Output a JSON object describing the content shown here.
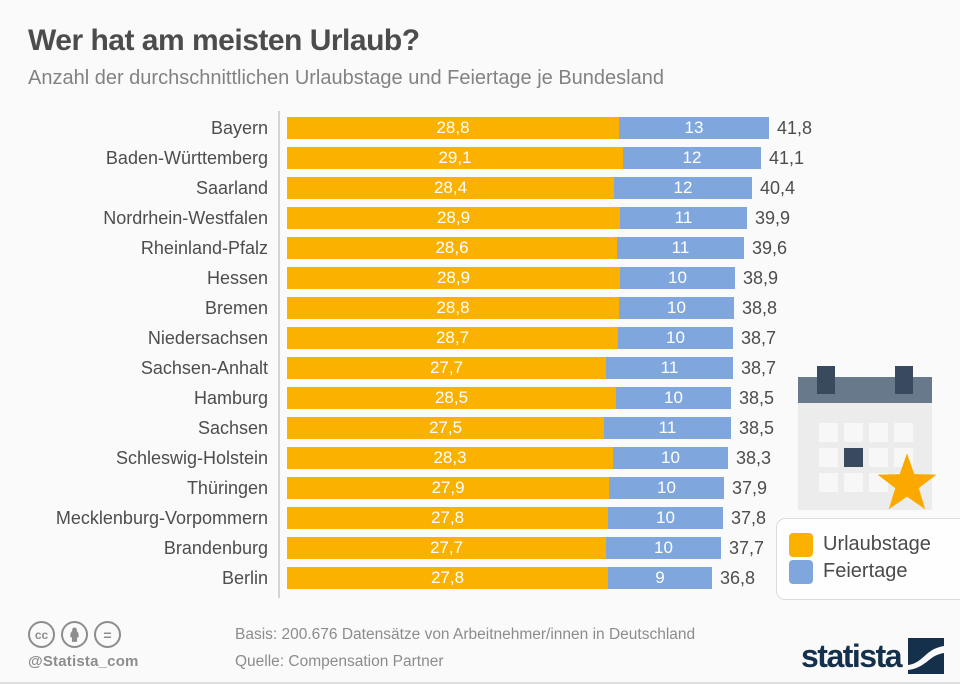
{
  "header": {
    "title": "Wer hat am meisten Urlaub?",
    "subtitle": "Anzahl der durchschnittlichen Urlaubstage und Feiertage je Bundesland"
  },
  "chart_data": {
    "type": "bar",
    "orientation": "horizontal",
    "stacked": true,
    "title": "Wer hat am meisten Urlaub?",
    "subtitle": "Anzahl der durchschnittlichen Urlaubstage und Feiertage je Bundesland",
    "categories": [
      "Bayern",
      "Baden-Württemberg",
      "Saarland",
      "Nordrhein-Westfalen",
      "Rheinland-Pfalz",
      "Hessen",
      "Bremen",
      "Niedersachsen",
      "Sachsen-Anhalt",
      "Hamburg",
      "Sachsen",
      "Schleswig-Holstein",
      "Thüringen",
      "Mecklenburg-Vorpommern",
      "Brandenburg",
      "Berlin"
    ],
    "series": [
      {
        "name": "Urlaubstage",
        "color": "#FBB100",
        "values": [
          28.8,
          29.1,
          28.4,
          28.9,
          28.6,
          28.9,
          28.8,
          28.7,
          27.7,
          28.5,
          27.5,
          28.3,
          27.9,
          27.8,
          27.7,
          27.8
        ],
        "labels": [
          "28,8",
          "29,1",
          "28,4",
          "28,9",
          "28,6",
          "28,9",
          "28,8",
          "28,7",
          "27,7",
          "28,5",
          "27,5",
          "28,3",
          "27,9",
          "27,8",
          "27,7",
          "27,8"
        ]
      },
      {
        "name": "Feiertage",
        "color": "#7FA7DE",
        "values": [
          13,
          12,
          12,
          11,
          11,
          10,
          10,
          10,
          11,
          10,
          11,
          10,
          10,
          10,
          10,
          9
        ],
        "labels": [
          "13",
          "12",
          "12",
          "11",
          "11",
          "10",
          "10",
          "10",
          "11",
          "10",
          "11",
          "10",
          "10",
          "10",
          "10",
          "9"
        ]
      }
    ],
    "totals": [
      41.8,
      41.1,
      40.4,
      39.9,
      39.6,
      38.9,
      38.8,
      38.7,
      38.7,
      38.5,
      38.5,
      38.3,
      37.9,
      37.8,
      37.7,
      36.8
    ],
    "total_labels": [
      "41,8",
      "41,1",
      "40,4",
      "39,9",
      "39,6",
      "38,9",
      "38,8",
      "38,7",
      "38,7",
      "38,5",
      "38,5",
      "38,3",
      "37,9",
      "37,8",
      "37,7",
      "36,8"
    ],
    "xlim": [
      0,
      41.8
    ],
    "grid": false,
    "legend_position": "bottom-right"
  },
  "legend": {
    "items": [
      {
        "label": "Urlaubstage",
        "color": "#FBB100"
      },
      {
        "label": "Feiertage",
        "color": "#7FA7DE"
      }
    ]
  },
  "footer": {
    "basis": "Basis: 200.676 Datensätze von Arbeitnehmer/innen in Deutschland",
    "source": "Quelle: Compensation Partner",
    "handle": "@Statista_com",
    "cc_label": "cc",
    "nd_label": "=",
    "logo_text": "statista"
  },
  "colors": {
    "orange": "#FBB100",
    "blue": "#7FA7DE",
    "navy": "#14304A",
    "slate": "#67798B",
    "dark_slate": "#3A4A5E",
    "star": "#FBA900"
  }
}
